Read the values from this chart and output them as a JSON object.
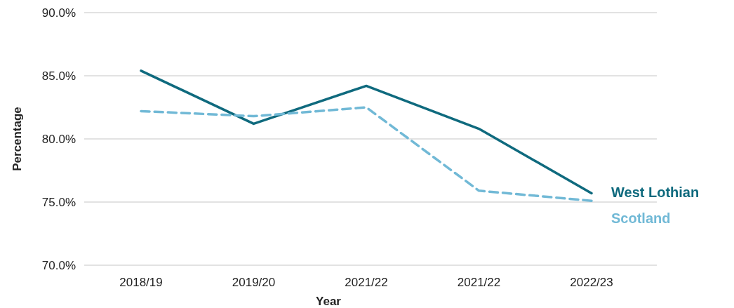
{
  "chart_data": {
    "type": "line",
    "xlabel": "Year",
    "ylabel": "Percentage",
    "categories": [
      "2018/19",
      "2019/20",
      "2021/22",
      "2021/22",
      "2022/23"
    ],
    "ylim": [
      70,
      90
    ],
    "yticks": [
      {
        "value": 70,
        "label": "70.0%"
      },
      {
        "value": 75,
        "label": "75.0%"
      },
      {
        "value": 80,
        "label": "80.0%"
      },
      {
        "value": 85,
        "label": "85.0%"
      },
      {
        "value": 90,
        "label": "90.0%"
      }
    ],
    "grid": "y",
    "marker": "none",
    "series": [
      {
        "name": "West Lothian",
        "color": "#0f6a7e",
        "line_style": "solid",
        "values": [
          85.4,
          81.2,
          84.2,
          80.8,
          75.7
        ]
      },
      {
        "name": "Scotland",
        "color": "#71b9d6",
        "line_style": "dashed",
        "values": [
          82.2,
          81.8,
          82.5,
          75.9,
          75.1
        ]
      }
    ]
  }
}
